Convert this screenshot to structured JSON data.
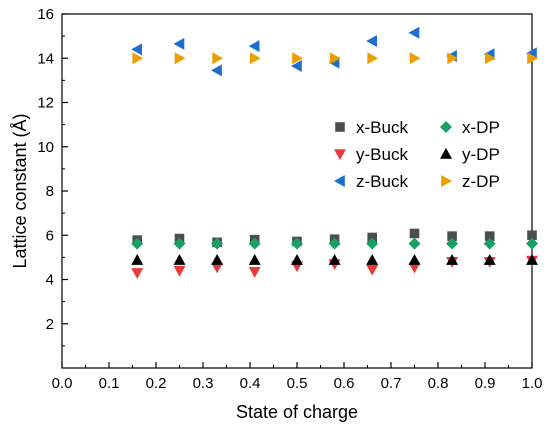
{
  "chart_data": {
    "type": "scatter",
    "xlabel": "State of charge",
    "ylabel": "Lattice constant (Å)",
    "xlim": [
      0.0,
      1.0
    ],
    "ylim": [
      0,
      16
    ],
    "xticks": [
      0.0,
      0.1,
      0.2,
      0.3,
      0.4,
      0.5,
      0.6,
      0.7,
      0.8,
      0.9,
      1.0
    ],
    "xtick_labels": [
      "0.0",
      "0.1",
      "0.2",
      "0.3",
      "0.4",
      "0.5",
      "0.6",
      "0.7",
      "0.8",
      "0.9",
      "1.0"
    ],
    "yticks": [
      2,
      4,
      6,
      8,
      10,
      12,
      14,
      16
    ],
    "ytick_labels": [
      "2",
      "4",
      "6",
      "8",
      "10",
      "12",
      "14",
      "16"
    ],
    "grid": false,
    "legend_position": "right",
    "x": [
      0.16,
      0.25,
      0.33,
      0.41,
      0.5,
      0.58,
      0.66,
      0.75,
      0.83,
      0.91,
      1.0
    ],
    "series": [
      {
        "name": "x-Buck",
        "marker": "square",
        "color": "#4d4d4d",
        "values": [
          5.78,
          5.85,
          5.68,
          5.8,
          5.72,
          5.82,
          5.9,
          6.08,
          5.96,
          5.96,
          6.0
        ]
      },
      {
        "name": "x-DP",
        "marker": "diamond",
        "color": "#1aa064",
        "values": [
          5.62,
          5.62,
          5.62,
          5.62,
          5.62,
          5.62,
          5.62,
          5.62,
          5.62,
          5.62,
          5.62
        ]
      },
      {
        "name": "y-Buck",
        "marker": "triangle-down",
        "color": "#e83a3a",
        "values": [
          4.3,
          4.4,
          4.55,
          4.35,
          4.6,
          4.7,
          4.45,
          4.55,
          4.8,
          4.8,
          4.85
        ]
      },
      {
        "name": "y-DP",
        "marker": "triangle-up",
        "color": "#000000",
        "values": [
          4.88,
          4.88,
          4.88,
          4.88,
          4.88,
          4.88,
          4.88,
          4.88,
          4.88,
          4.88,
          4.88
        ]
      },
      {
        "name": "z-Buck",
        "marker": "triangle-left",
        "color": "#1f6fd1",
        "values": [
          14.4,
          14.65,
          13.45,
          14.55,
          13.65,
          13.8,
          14.78,
          15.15,
          14.1,
          14.18,
          14.22
        ]
      },
      {
        "name": "z-DP",
        "marker": "triangle-right",
        "color": "#e8a000",
        "values": [
          14.0,
          14.0,
          14.0,
          14.0,
          14.0,
          14.0,
          14.0,
          14.0,
          14.0,
          14.0,
          14.0
        ]
      }
    ],
    "legend_columns": [
      [
        "x-Buck",
        "y-Buck",
        "z-Buck"
      ],
      [
        "x-DP",
        "y-DP",
        "z-DP"
      ]
    ]
  }
}
